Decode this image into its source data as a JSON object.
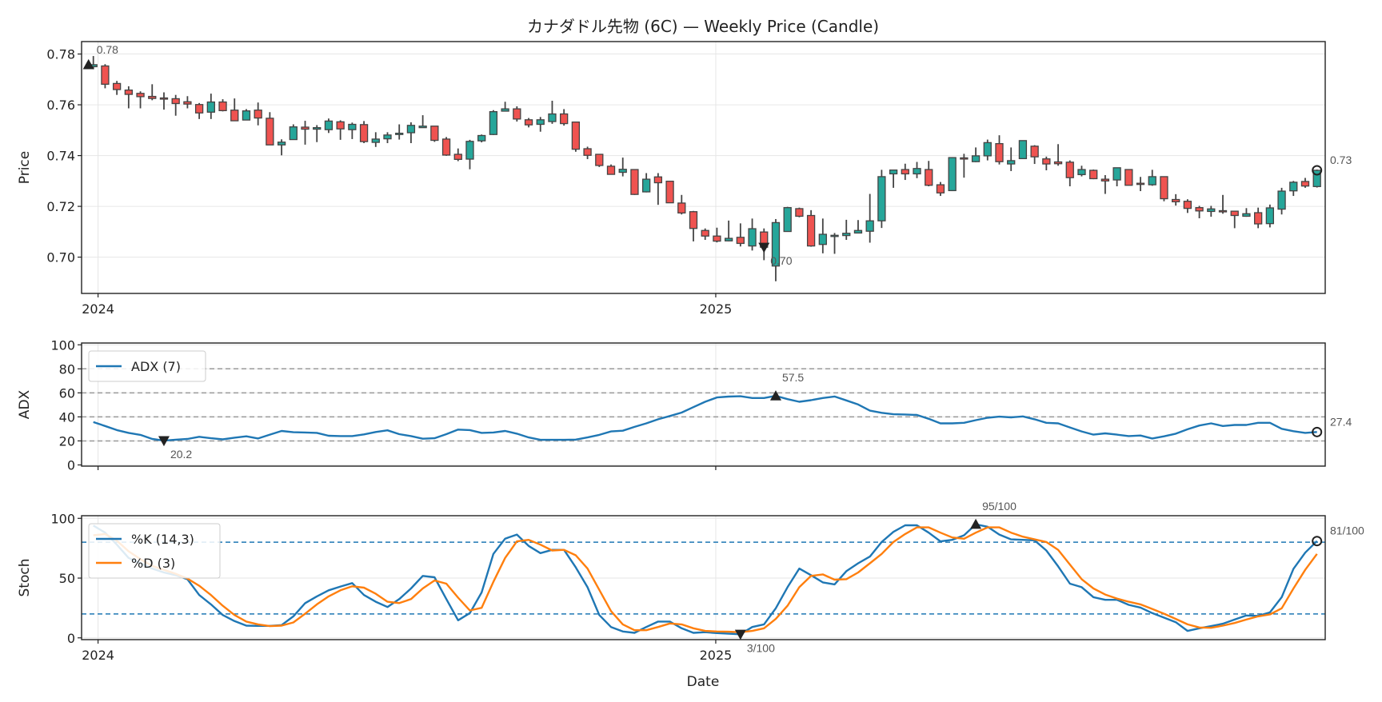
{
  "title": "カナダドル先物 (6C) — Weekly Price (Candle)",
  "xlabel": "Date",
  "x_ticks": [
    {
      "label": "2024",
      "index": 0.4
    },
    {
      "label": "2025",
      "index": 52.9
    }
  ],
  "colors": {
    "up": "#26a69a",
    "down": "#ef5350",
    "edge": "#444444",
    "adx": "#1f77b4",
    "k": "#1f77b4",
    "d": "#ff7f0e",
    "ref_gray": "#999999",
    "ref_blue": "#1f77b4"
  },
  "chart_data": [
    {
      "type": "candlestick",
      "name": "price",
      "ylabel": "Price",
      "ylim": [
        0.6857,
        0.7849
      ],
      "xlim": [
        -1,
        104.7
      ],
      "yticks": [
        0.7,
        0.72,
        0.74,
        0.76,
        0.78
      ],
      "grid": true,
      "ohlc_fields": [
        "open",
        "high",
        "low",
        "close"
      ],
      "ohlc": [
        [
          0.775,
          0.7792,
          0.774,
          0.7758
        ],
        [
          0.7753,
          0.776,
          0.7665,
          0.7681
        ],
        [
          0.7684,
          0.7694,
          0.7639,
          0.766
        ],
        [
          0.7658,
          0.7673,
          0.7586,
          0.7641
        ],
        [
          0.7645,
          0.7653,
          0.7586,
          0.7632
        ],
        [
          0.7633,
          0.7681,
          0.7618,
          0.7625
        ],
        [
          0.7627,
          0.7649,
          0.7581,
          0.7624
        ],
        [
          0.7624,
          0.7639,
          0.7557,
          0.7605
        ],
        [
          0.7612,
          0.7634,
          0.7586,
          0.7603
        ],
        [
          0.7601,
          0.7607,
          0.7544,
          0.7568
        ],
        [
          0.7571,
          0.7644,
          0.7544,
          0.7611
        ],
        [
          0.7611,
          0.7622,
          0.7574,
          0.7577
        ],
        [
          0.7579,
          0.7625,
          0.7537,
          0.7537
        ],
        [
          0.754,
          0.7583,
          0.754,
          0.7576
        ],
        [
          0.7579,
          0.7609,
          0.7519,
          0.7548
        ],
        [
          0.7547,
          0.7571,
          0.7442,
          0.7442
        ],
        [
          0.7442,
          0.7464,
          0.7401,
          0.7453
        ],
        [
          0.7463,
          0.7523,
          0.7463,
          0.7513
        ],
        [
          0.7512,
          0.7537,
          0.7443,
          0.7504
        ],
        [
          0.7504,
          0.752,
          0.7453,
          0.751
        ],
        [
          0.7502,
          0.7546,
          0.7489,
          0.7536
        ],
        [
          0.7533,
          0.7539,
          0.7462,
          0.7505
        ],
        [
          0.7502,
          0.753,
          0.7465,
          0.7523
        ],
        [
          0.7522,
          0.7536,
          0.7449,
          0.7455
        ],
        [
          0.7452,
          0.7492,
          0.7434,
          0.7465
        ],
        [
          0.7466,
          0.7492,
          0.7449,
          0.7481
        ],
        [
          0.7483,
          0.7523,
          0.7463,
          0.7488
        ],
        [
          0.749,
          0.7531,
          0.7449,
          0.7519
        ],
        [
          0.751,
          0.7559,
          0.751,
          0.7516
        ],
        [
          0.7516,
          0.7516,
          0.7454,
          0.746
        ],
        [
          0.7465,
          0.7473,
          0.7399,
          0.7402
        ],
        [
          0.7405,
          0.7428,
          0.7378,
          0.7385
        ],
        [
          0.7386,
          0.7462,
          0.7346,
          0.7456
        ],
        [
          0.7458,
          0.7483,
          0.7452,
          0.7479
        ],
        [
          0.7483,
          0.7579,
          0.7481,
          0.7573
        ],
        [
          0.7575,
          0.7612,
          0.7575,
          0.7584
        ],
        [
          0.7584,
          0.7594,
          0.7534,
          0.7544
        ],
        [
          0.7541,
          0.7548,
          0.7511,
          0.7521
        ],
        [
          0.7523,
          0.7552,
          0.7494,
          0.7541
        ],
        [
          0.7534,
          0.7616,
          0.7525,
          0.7564
        ],
        [
          0.7564,
          0.7583,
          0.7518,
          0.7526
        ],
        [
          0.7532,
          0.7532,
          0.7415,
          0.7425
        ],
        [
          0.7427,
          0.7435,
          0.7386,
          0.7401
        ],
        [
          0.7405,
          0.7405,
          0.7355,
          0.7361
        ],
        [
          0.7358,
          0.7365,
          0.7326,
          0.7326
        ],
        [
          0.7334,
          0.7392,
          0.7318,
          0.7346
        ],
        [
          0.7345,
          0.7345,
          0.7245,
          0.7247
        ],
        [
          0.7257,
          0.7331,
          0.7255,
          0.7307
        ],
        [
          0.7316,
          0.7331,
          0.7206,
          0.7293
        ],
        [
          0.7299,
          0.7299,
          0.7213,
          0.7214
        ],
        [
          0.7213,
          0.7245,
          0.7168,
          0.7174
        ],
        [
          0.7179,
          0.7182,
          0.7062,
          0.7113
        ],
        [
          0.7105,
          0.7113,
          0.7068,
          0.7083
        ],
        [
          0.7083,
          0.7116,
          0.7058,
          0.7063
        ],
        [
          0.7064,
          0.7144,
          0.7062,
          0.7074
        ],
        [
          0.7078,
          0.7133,
          0.7042,
          0.7054
        ],
        [
          0.7044,
          0.7152,
          0.7026,
          0.7112
        ],
        [
          0.7099,
          0.7113,
          0.6988,
          0.7039
        ],
        [
          0.6965,
          0.715,
          0.6905,
          0.7136
        ],
        [
          0.7101,
          0.7198,
          0.71,
          0.7195
        ],
        [
          0.7191,
          0.7195,
          0.7157,
          0.7161
        ],
        [
          0.7164,
          0.7185,
          0.7041,
          0.7044
        ],
        [
          0.705,
          0.7152,
          0.7015,
          0.709
        ],
        [
          0.7083,
          0.7095,
          0.7013,
          0.7086
        ],
        [
          0.7085,
          0.7147,
          0.7068,
          0.7094
        ],
        [
          0.7095,
          0.7146,
          0.7094,
          0.7105
        ],
        [
          0.7102,
          0.7249,
          0.7057,
          0.7143
        ],
        [
          0.7143,
          0.7344,
          0.7115,
          0.7317
        ],
        [
          0.7328,
          0.7344,
          0.7273,
          0.7343
        ],
        [
          0.7345,
          0.7368,
          0.7304,
          0.7328
        ],
        [
          0.7328,
          0.7375,
          0.7311,
          0.7349
        ],
        [
          0.7345,
          0.7379,
          0.7279,
          0.7283
        ],
        [
          0.7285,
          0.7296,
          0.7241,
          0.7253
        ],
        [
          0.7262,
          0.7394,
          0.726,
          0.7392
        ],
        [
          0.7391,
          0.7407,
          0.7313,
          0.7388
        ],
        [
          0.7376,
          0.7432,
          0.7374,
          0.7399
        ],
        [
          0.7399,
          0.7463,
          0.7381,
          0.7451
        ],
        [
          0.7447,
          0.748,
          0.7365,
          0.7376
        ],
        [
          0.7367,
          0.7432,
          0.7339,
          0.738
        ],
        [
          0.7388,
          0.746,
          0.7388,
          0.7459
        ],
        [
          0.7437,
          0.7441,
          0.7367,
          0.7395
        ],
        [
          0.7387,
          0.7396,
          0.7342,
          0.7367
        ],
        [
          0.7375,
          0.7445,
          0.736,
          0.7368
        ],
        [
          0.7374,
          0.7381,
          0.7279,
          0.7313
        ],
        [
          0.7325,
          0.736,
          0.7318,
          0.7345
        ],
        [
          0.7342,
          0.7345,
          0.7307,
          0.7309
        ],
        [
          0.7307,
          0.7323,
          0.7249,
          0.73
        ],
        [
          0.7304,
          0.7352,
          0.7279,
          0.7352
        ],
        [
          0.7345,
          0.7345,
          0.7283,
          0.7283
        ],
        [
          0.7291,
          0.7316,
          0.726,
          0.7288
        ],
        [
          0.7285,
          0.7344,
          0.7281,
          0.7317
        ],
        [
          0.7317,
          0.7317,
          0.722,
          0.723
        ],
        [
          0.7227,
          0.7248,
          0.7203,
          0.7218
        ],
        [
          0.722,
          0.7228,
          0.7174,
          0.7192
        ],
        [
          0.7195,
          0.7202,
          0.7153,
          0.7182
        ],
        [
          0.718,
          0.7202,
          0.7159,
          0.719
        ],
        [
          0.7183,
          0.7245,
          0.7171,
          0.7182
        ],
        [
          0.7181,
          0.7181,
          0.7114,
          0.7164
        ],
        [
          0.7161,
          0.7193,
          0.7159,
          0.7171
        ],
        [
          0.7175,
          0.7195,
          0.7114,
          0.7131
        ],
        [
          0.7132,
          0.7207,
          0.7117,
          0.7194
        ],
        [
          0.7189,
          0.7273,
          0.7168,
          0.726
        ],
        [
          0.7261,
          0.73,
          0.7241,
          0.7295
        ],
        [
          0.7298,
          0.7312,
          0.7273,
          0.728
        ],
        [
          0.7278,
          0.7345,
          0.7274,
          0.7342
        ]
      ],
      "annotations": [
        {
          "label": "0.78",
          "index": 0,
          "value": 0.7758,
          "marker": "triangle-up",
          "kind": "max"
        },
        {
          "label": "0.70",
          "index": 57,
          "value": 0.7039,
          "marker": "triangle-down",
          "kind": "min"
        },
        {
          "label": "0.73",
          "index": 104,
          "value": 0.7342,
          "marker": "circle",
          "kind": "last"
        }
      ]
    },
    {
      "type": "line",
      "name": "adx",
      "ylabel": "ADX",
      "ylim": [
        -1,
        101.5
      ],
      "yticks": [
        0,
        20,
        40,
        60,
        80,
        100
      ],
      "reference_lines": [
        20,
        40,
        60,
        80
      ],
      "legend": "top-left",
      "series": [
        {
          "name": "ADX (7)",
          "values": [
            35.7,
            32.4,
            29,
            26.7,
            25,
            21.6,
            20.2,
            21,
            21.6,
            23.4,
            22.2,
            21.3,
            22.7,
            23.8,
            22,
            25.2,
            28.3,
            27.2,
            27,
            26.7,
            24.3,
            24,
            24,
            25.4,
            27.4,
            28.8,
            25.6,
            24,
            21.8,
            22.2,
            25.6,
            29.4,
            29,
            26.7,
            27,
            28.3,
            26,
            22.9,
            20.9,
            20.9,
            20.9,
            21.1,
            22.9,
            25,
            27.9,
            28.5,
            31.7,
            34.6,
            38,
            40.7,
            43.6,
            48.1,
            52.6,
            56.2,
            56.9,
            57.2,
            55.7,
            55.7,
            57.5,
            54.8,
            52.6,
            53.9,
            55.7,
            57.0,
            53.7,
            50.3,
            45.2,
            43.4,
            42.2,
            42,
            41.6,
            38.4,
            34.6,
            34.6,
            35.1,
            37.3,
            39.3,
            40.2,
            39.6,
            40.4,
            38,
            35.1,
            34.6,
            31.2,
            27.9,
            25.2,
            26.3,
            25.2,
            24,
            24.5,
            22,
            23.8,
            26,
            29.7,
            32.8,
            34.6,
            32.4,
            33.3,
            33.3,
            35.1,
            35.1,
            30.1,
            28.1,
            26.7,
            27.4
          ]
        }
      ],
      "annotations": [
        {
          "label": "20.2",
          "index": 6,
          "value": 20.2,
          "marker": "triangle-down",
          "kind": "min"
        },
        {
          "label": "57.5",
          "index": 58,
          "value": 57.5,
          "marker": "triangle-up",
          "kind": "max"
        },
        {
          "label": "27.4",
          "index": 104,
          "value": 27.4,
          "marker": "circle",
          "kind": "last"
        }
      ]
    },
    {
      "type": "line",
      "name": "stoch",
      "ylabel": "Stoch",
      "ylim": [
        -1.5,
        102.2
      ],
      "yticks": [
        0,
        50,
        100
      ],
      "reference_lines": [
        20,
        80
      ],
      "legend": "top-left",
      "series": [
        {
          "name": "%K (14,3)",
          "values": [
            94,
            88,
            78,
            66.9,
            62.4,
            58,
            54.7,
            52.4,
            49,
            35.8,
            28,
            19.1,
            14,
            10.2,
            10,
            10,
            10.7,
            18,
            29,
            34.7,
            39.8,
            42.9,
            45.8,
            35.8,
            30.2,
            25.8,
            32.4,
            41.3,
            51.8,
            50.7,
            32.4,
            14.7,
            20.7,
            38,
            70.2,
            83,
            86.4,
            76.9,
            70.9,
            73.6,
            73.6,
            59,
            42.4,
            19.1,
            9.1,
            5.3,
            4.2,
            9.1,
            13.6,
            13.6,
            8,
            4.2,
            4.7,
            4.0,
            3.5,
            3.0,
            9.1,
            11.3,
            24.7,
            42.4,
            58,
            52.4,
            46.4,
            44.7,
            55.8,
            62.4,
            68,
            80.2,
            88.7,
            94.2,
            94.2,
            88,
            80.7,
            82,
            85.8,
            95,
            93,
            86.4,
            82.4,
            82,
            81.6,
            73.1,
            59.8,
            45.3,
            42.4,
            34,
            31.8,
            31.8,
            27.6,
            25.3,
            20.7,
            16.9,
            13.1,
            5.8,
            8,
            9.8,
            11.8,
            15.3,
            18.7,
            18.4,
            21.3,
            34,
            57.8,
            71.3,
            81
          ]
        },
        {
          "name": "%D (3)",
          "values": [
            85.8,
            86.9,
            81.3,
            72.4,
            65.8,
            60.2,
            56.9,
            53.6,
            49.6,
            43.6,
            35.8,
            26.9,
            19.1,
            13.6,
            11.3,
            9.8,
            10.2,
            12.9,
            20.2,
            28,
            34.7,
            39.8,
            43.1,
            42,
            36.9,
            30.2,
            29.1,
            32.4,
            41.3,
            48,
            45.3,
            33.6,
            22.9,
            25.1,
            46.9,
            66.9,
            80.7,
            82,
            78,
            73.1,
            73.6,
            69.1,
            58,
            40.2,
            22.4,
            11.3,
            6.4,
            6.4,
            9.1,
            12,
            11.3,
            8,
            5.8,
            5.3,
            5.1,
            4.7,
            5.8,
            8,
            15.8,
            26.9,
            42.4,
            51.8,
            53.1,
            48.7,
            49.1,
            54.7,
            62.4,
            70.2,
            80.2,
            86.9,
            92.4,
            92.4,
            88,
            84,
            82.9,
            88,
            92.4,
            92.4,
            88,
            84.7,
            82.4,
            80.2,
            73.6,
            61.3,
            49.1,
            41.3,
            36.2,
            32.9,
            30.2,
            28,
            24.2,
            20.2,
            15.8,
            11.3,
            8.7,
            8.4,
            10.2,
            12.4,
            15.3,
            18,
            19.6,
            24.7,
            41.3,
            56.9,
            70.2
          ]
        }
      ],
      "annotations": [
        {
          "label": "3/100",
          "index": 55,
          "value": 3,
          "marker": "triangle-down",
          "kind": "min"
        },
        {
          "label": "95/100",
          "index": 75,
          "value": 95,
          "marker": "triangle-up",
          "kind": "max"
        },
        {
          "label": "81/100",
          "index": 104,
          "value": 81,
          "marker": "circle",
          "kind": "last"
        }
      ]
    }
  ]
}
